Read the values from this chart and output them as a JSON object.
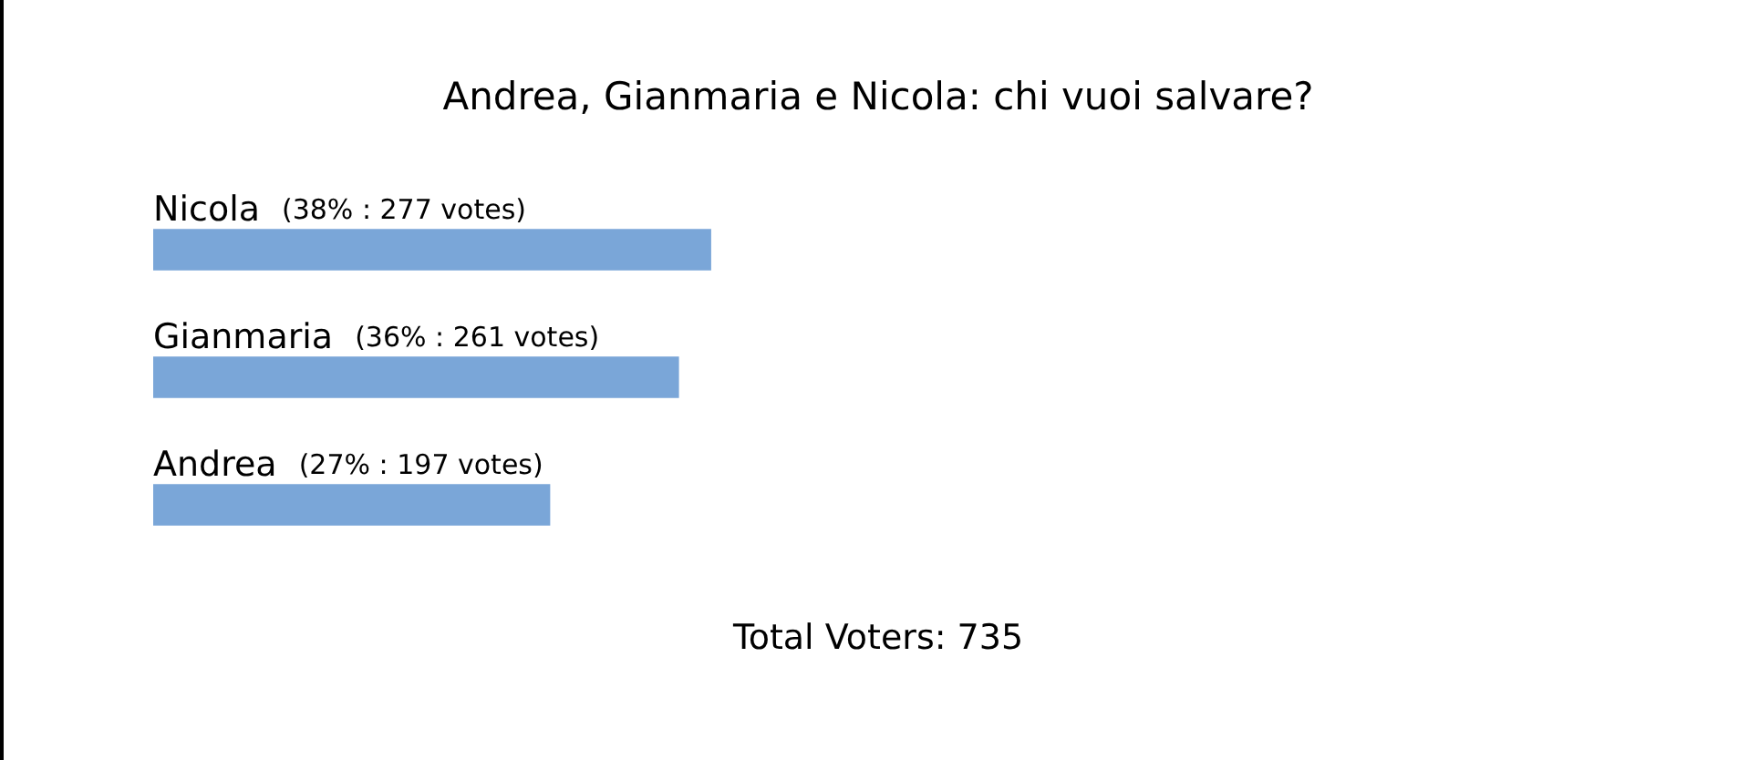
{
  "chart_data": {
    "type": "bar",
    "orientation": "horizontal",
    "title": "Andrea, Gianmaria e Nicola: chi vuoi salvare?",
    "categories": [
      "Nicola",
      "Gianmaria",
      "Andrea"
    ],
    "values": [
      277,
      261,
      197
    ],
    "value_labels": [
      "(38% : 277 votes)",
      "(36% : 261 votes)",
      "(27% : 197 votes)"
    ],
    "color": "#7aa6d8",
    "annotations": [
      "Total Voters: 735"
    ],
    "legend": false,
    "tick_labels": false
  }
}
